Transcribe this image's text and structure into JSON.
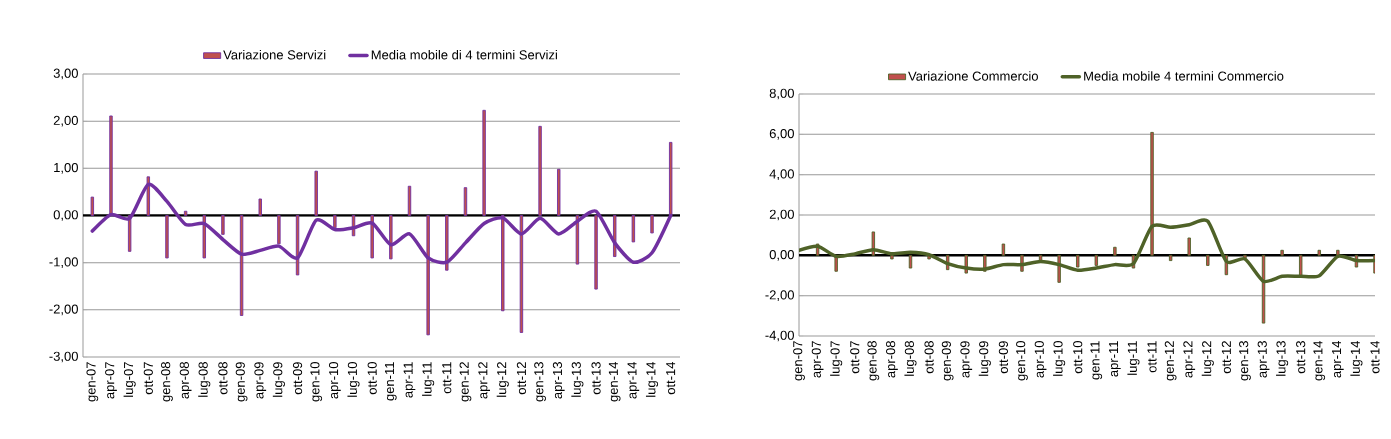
{
  "chart_data": [
    {
      "type": "bar",
      "categories": [
        "gen-07",
        "apr-07",
        "lug-07",
        "ott-07",
        "gen-08",
        "apr-08",
        "lug-08",
        "ott-08",
        "gen-09",
        "apr-09",
        "lug-09",
        "ott-09",
        "gen-10",
        "apr-10",
        "lug-10",
        "ott-10",
        "gen-11",
        "apr-11",
        "lug-11",
        "ott-11",
        "gen-12",
        "apr-12",
        "lug-12",
        "ott-12",
        "gen-13",
        "apr-13",
        "lug-13",
        "ott-13",
        "gen-14",
        "apr-14",
        "lug-14",
        "ott-14"
      ],
      "series": [
        {
          "name": "Variazione Servizi",
          "color": "#c0504d",
          "values": [
            0.39,
            2.11,
            -0.76,
            0.82,
            -0.9,
            0.09,
            -0.9,
            -0.4,
            -2.12,
            0.35,
            -0.6,
            -1.26,
            0.94,
            -0.26,
            -0.43,
            -0.9,
            -0.92,
            0.62,
            -2.53,
            -1.16,
            0.59,
            2.23,
            -2.02,
            -2.48,
            1.89,
            0.98,
            -1.03,
            -1.56,
            -0.87,
            -0.56,
            -0.37,
            1.55
          ]
        },
        {
          "name": "Media mobile di 4 termini Servizi",
          "type": "line",
          "color": "#7030a0",
          "values": [
            -0.33,
            0.02,
            -0.06,
            0.66,
            0.3,
            -0.19,
            -0.17,
            -0.51,
            -0.82,
            -0.74,
            -0.65,
            -0.9,
            -0.1,
            -0.3,
            -0.26,
            -0.16,
            -0.62,
            -0.39,
            -0.9,
            -0.99,
            -0.58,
            -0.17,
            -0.05,
            -0.39,
            -0.06,
            -0.39,
            -0.12,
            0.09,
            -0.58,
            -0.99,
            -0.79,
            0.0
          ]
        }
      ],
      "ylim": [
        -3,
        3
      ],
      "yticks": [
        {
          "value": -3,
          "label": "-3,00"
        },
        {
          "value": -2,
          "label": "-2,00"
        },
        {
          "value": -1,
          "label": "-1,00"
        },
        {
          "value": 0,
          "label": "0,00"
        },
        {
          "value": 1,
          "label": "1,00"
        },
        {
          "value": 2,
          "label": "2,00"
        },
        {
          "value": 3,
          "label": "3,00"
        }
      ],
      "grid": "y",
      "legend": "top"
    },
    {
      "type": "bar",
      "categories": [
        "gen-07",
        "apr-07",
        "lug-07",
        "ott-07",
        "gen-08",
        "apr-08",
        "lug-08",
        "ott-08",
        "gen-09",
        "apr-09",
        "lug-09",
        "ott-09",
        "gen-10",
        "apr-10",
        "lug-10",
        "ott-10",
        "gen-11",
        "apr-11",
        "lug-11",
        "ott-11",
        "gen-12",
        "apr-12",
        "lug-12",
        "ott-12",
        "gen-13",
        "apr-13",
        "lug-13",
        "ott-13",
        "gen-14",
        "apr-14",
        "lug-14",
        "ott-14"
      ],
      "series": [
        {
          "name": "Variazione Commercio",
          "color": "#c0504d",
          "values": [
            null,
            0.56,
            -0.79,
            null,
            1.16,
            -0.18,
            -0.63,
            -0.18,
            -0.71,
            -0.88,
            -0.79,
            0.56,
            -0.79,
            -0.3,
            -1.34,
            -0.58,
            -0.5,
            0.4,
            -0.63,
            6.1,
            -0.26,
            0.86,
            -0.5,
            -0.96,
            -0.15,
            -3.36,
            0.25,
            -1.01,
            0.25,
            0.25,
            -0.58,
            -0.88
          ]
        },
        {
          "name": "Media mobile 4 termini Commercio",
          "type": "line",
          "color": "#4f6228",
          "values": [
            0.25,
            0.45,
            -0.05,
            0.07,
            0.28,
            0.08,
            0.15,
            0.03,
            -0.41,
            -0.63,
            -0.68,
            -0.46,
            -0.46,
            -0.31,
            -0.46,
            -0.74,
            -0.63,
            -0.46,
            -0.41,
            1.44,
            1.39,
            1.52,
            1.69,
            -0.3,
            -0.18,
            -1.29,
            -1.04,
            -1.04,
            -1.01,
            -0.05,
            -0.26,
            -0.26
          ]
        }
      ],
      "ylim": [
        -4,
        8
      ],
      "yticks": [
        {
          "value": -4,
          "label": "-4,00"
        },
        {
          "value": -2,
          "label": "-2,00"
        },
        {
          "value": 0,
          "label": "0,00"
        },
        {
          "value": 2,
          "label": "2,00"
        },
        {
          "value": 4,
          "label": "4,00"
        },
        {
          "value": 6,
          "label": "6,00"
        },
        {
          "value": 8,
          "label": "8,00"
        }
      ],
      "grid": "y",
      "legend": "top"
    }
  ]
}
